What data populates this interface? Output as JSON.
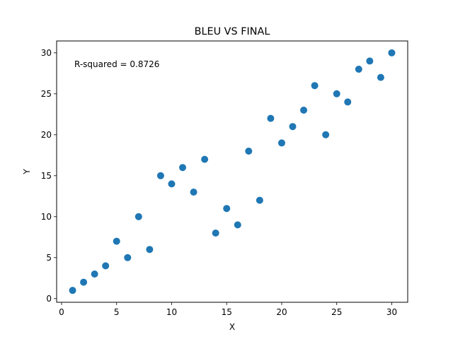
{
  "chart_data": {
    "type": "scatter",
    "title": "BLEU VS FINAL",
    "xlabel": "X",
    "ylabel": "Y",
    "xlim": [
      -0.45,
      31.45
    ],
    "ylim": [
      -0.45,
      31.45
    ],
    "xticks": [
      0,
      5,
      10,
      15,
      20,
      25,
      30
    ],
    "yticks": [
      0,
      5,
      10,
      15,
      20,
      25,
      30
    ],
    "xtick_labels": [
      "0",
      "5",
      "10",
      "15",
      "20",
      "25",
      "30"
    ],
    "ytick_labels": [
      "0",
      "5",
      "10",
      "15",
      "20",
      "25",
      "30"
    ],
    "grid": false,
    "annotation": "R-squared = 0.8726",
    "marker_color": "#1f77b4",
    "series": [
      {
        "x": [
          1,
          2,
          3,
          4,
          5,
          6,
          7,
          8,
          9,
          10,
          11,
          12,
          13,
          14,
          15,
          16,
          17,
          18,
          19,
          20,
          21,
          22,
          23,
          24,
          25,
          26,
          27,
          28,
          29,
          30
        ],
        "y": [
          1,
          2,
          3,
          4,
          7,
          5,
          10,
          6,
          15,
          14,
          16,
          13,
          17,
          8,
          11,
          9,
          18,
          12,
          22,
          19,
          21,
          23,
          26,
          20,
          25,
          24,
          28,
          29,
          27,
          30
        ]
      }
    ]
  }
}
